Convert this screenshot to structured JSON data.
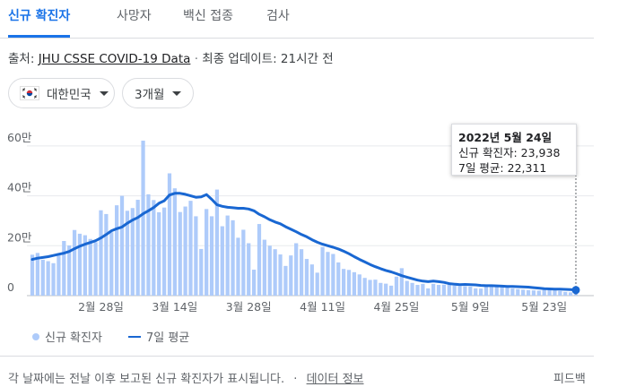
{
  "tabs": [
    {
      "label": "신규 확진자",
      "active": true
    },
    {
      "label": "사망자",
      "active": false
    },
    {
      "label": "백신 접종",
      "active": false
    },
    {
      "label": "검사",
      "active": false
    }
  ],
  "source": {
    "prefix": "출처:",
    "link": "JHU CSSE COVID-19 Data",
    "separator": "·",
    "updated": "최종 업데이트: 21시간 전"
  },
  "filters": {
    "region": "대한민국",
    "period": "3개월"
  },
  "tooltip": {
    "date": "2022년 5월 24일",
    "cases_line": "신규 확진자: 23,938",
    "avg_line": "7일 평균: 22,311"
  },
  "legend": {
    "bars": "신규 확진자",
    "line": "7일 평균"
  },
  "footer": {
    "note": "각 날짜에는 전날 이후 보고된 신규 확진자가 표시됩니다.",
    "separator": "·",
    "info_link": "데이터 정보",
    "feedback": "피드백"
  },
  "colors": {
    "bar": "#aecbfa",
    "line": "#1967d2",
    "active_tab": "#1a73e8"
  },
  "chart_data": {
    "type": "bar",
    "x_ticks": [
      "2월 28일",
      "3월 14일",
      "3월 28일",
      "4월 11일",
      "4월 25일",
      "5월 9일",
      "5월 23일"
    ],
    "y_ticks": [
      "0",
      "20만",
      "40만",
      "60만"
    ],
    "ylim": [
      0,
      700000
    ],
    "grid": true,
    "series": [
      {
        "name": "신규 확진자",
        "values": [
          164000,
          171000,
          144000,
          138000,
          130000,
          164000,
          219000,
          201000,
          263000,
          248000,
          242000,
          227000,
          214000,
          342000,
          327000,
          254000,
          362000,
          400000,
          340000,
          351000,
          384000,
          621000,
          406000,
          383000,
          334000,
          353000,
          490000,
          430000,
          335000,
          357000,
          380000,
          318000,
          187000,
          347000,
          318000,
          425000,
          278000,
          321000,
          302000,
          232000,
          264000,
          210000,
          104000,
          287000,
          224000,
          200000,
          186000,
          165000,
          119000,
          161000,
          210000,
          186000,
          147000,
          125000,
          92000,
          195000,
          175000,
          167000,
          133000,
          107000,
          103000,
          94000,
          85000,
          71000,
          63000,
          64000,
          51000,
          48000,
          40000,
          76000,
          110000,
          59000,
          51000,
          43000,
          47000,
          29000,
          47000,
          43000,
          44000,
          45000,
          40000,
          38000,
          37000,
          36000,
          29000,
          28000,
          40000,
          41000,
          39000,
          35000,
          35000,
          29000,
          26000,
          24000,
          22000,
          21000,
          20000,
          25000,
          24000,
          21000,
          19000,
          15000,
          13000,
          24000
        ]
      },
      {
        "name": "7일 평균",
        "values": [
          145000,
          150000,
          153000,
          156000,
          161000,
          166000,
          170000,
          177000,
          188000,
          198000,
          206000,
          213000,
          220000,
          231000,
          245000,
          260000,
          268000,
          275000,
          290000,
          303000,
          313000,
          328000,
          340000,
          353000,
          370000,
          380000,
          403000,
          410000,
          410000,
          406000,
          400000,
          394000,
          396000,
          405000,
          386000,
          364000,
          358000,
          354000,
          352000,
          350000,
          350000,
          347000,
          340000,
          326000,
          316000,
          304000,
          295000,
          288000,
          276000,
          266000,
          256000,
          245000,
          236000,
          224000,
          214000,
          206000,
          200000,
          194000,
          187000,
          178000,
          168000,
          156000,
          145000,
          135000,
          125000,
          116000,
          108000,
          101000,
          95000,
          88000,
          80000,
          74000,
          68000,
          62000,
          58000,
          56000,
          58000,
          56000,
          53000,
          48000,
          46000,
          44000,
          45000,
          44000,
          43000,
          41000,
          40000,
          40000,
          39000,
          38000,
          37000,
          37000,
          36000,
          35000,
          34000,
          32000,
          30000,
          28000,
          27000,
          26000,
          26000,
          25000,
          24000,
          22311
        ]
      }
    ]
  }
}
